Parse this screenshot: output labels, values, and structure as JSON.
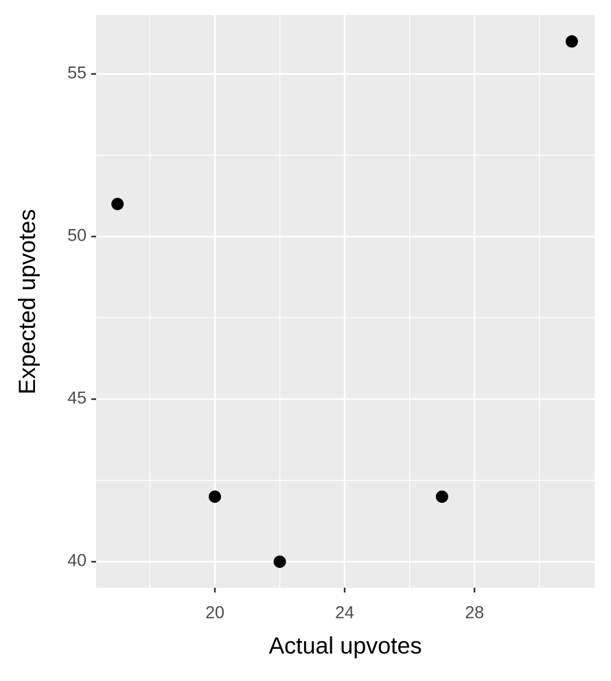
{
  "chart_data": {
    "type": "scatter",
    "x_label": "Actual upvotes",
    "y_label": "Expected upvotes",
    "x": [
      17,
      20,
      22,
      27,
      31
    ],
    "values": [
      51,
      42,
      40,
      42,
      56
    ],
    "color": "#000000",
    "xlim": [
      16.34,
      31.7
    ],
    "xticks": [
      20,
      24,
      28
    ],
    "ylim": [
      39.2,
      56.81
    ],
    "yticks": [
      40,
      45,
      50,
      55
    ],
    "grid": true
  }
}
